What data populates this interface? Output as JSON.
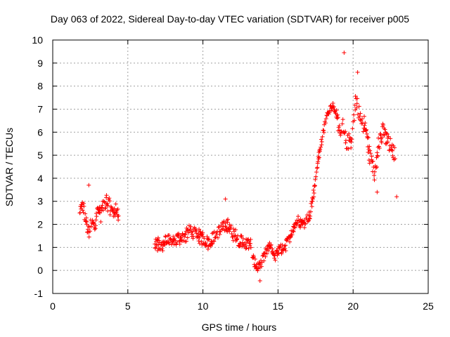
{
  "chart_data": {
    "type": "scatter",
    "title": "Day 063 of 2022, Sidereal Day-to-day VTEC variation (SDTVAR) for receiver p005",
    "xlabel": "GPS time / hours",
    "ylabel": "SDTVAR / TECUs",
    "xlim": [
      0,
      25
    ],
    "ylim": [
      -1,
      10
    ],
    "xticks": [
      "0",
      "5",
      "10",
      "15",
      "20",
      "25"
    ],
    "yticks": [
      "-1",
      "0",
      "1",
      "2",
      "3",
      "4",
      "5",
      "6",
      "7",
      "8",
      "9",
      "10"
    ],
    "grid": true,
    "marker": "+",
    "color": "#ff0000",
    "series": [
      {
        "name": "SDTVAR",
        "segments": [
          {
            "x": [
              1.8,
              2.0,
              2.2,
              2.4,
              2.6,
              2.8,
              3.0,
              3.2,
              3.4,
              3.6,
              3.8,
              4.0,
              4.2,
              4.4
            ],
            "y": [
              2.4,
              2.8,
              2.2,
              1.5,
              2.3,
              2.0,
              2.6,
              2.4,
              2.9,
              3.0,
              2.8,
              2.5,
              2.6,
              2.2
            ],
            "spread": 0.6
          },
          {
            "x": [
              6.8,
              7.2,
              7.6,
              8.0,
              8.4,
              8.8,
              9.2,
              9.6,
              10.0,
              10.4,
              10.8,
              11.2,
              11.6,
              12.0,
              12.4,
              12.8,
              13.2
            ],
            "y": [
              1.2,
              1.0,
              1.3,
              1.2,
              1.4,
              1.5,
              1.8,
              1.5,
              1.4,
              1.2,
              1.5,
              1.8,
              2.0,
              1.6,
              1.3,
              1.2,
              1.1
            ],
            "spread": 0.5
          },
          {
            "x": [
              13.3,
              13.6,
              13.9,
              14.2,
              14.5,
              14.8,
              15.1,
              15.4,
              15.7,
              16.0,
              16.3,
              16.6,
              16.9,
              17.2
            ],
            "y": [
              0.5,
              0.1,
              0.3,
              0.8,
              1.0,
              0.6,
              0.9,
              1.0,
              1.3,
              1.8,
              2.2,
              2.0,
              2.2,
              2.6
            ],
            "spread": 0.4
          },
          {
            "x": [
              17.2,
              17.4,
              17.6,
              17.8,
              18.0,
              18.2,
              18.4,
              18.6,
              18.8,
              19.0
            ],
            "y": [
              2.8,
              3.5,
              4.5,
              5.3,
              6.0,
              6.6,
              7.0,
              7.2,
              7.0,
              6.5
            ],
            "spread": 0.3
          },
          {
            "x": [
              19.0,
              19.3,
              19.6,
              19.9,
              20.2,
              20.5,
              20.8,
              21.1,
              21.4,
              21.7,
              22.0,
              22.4,
              22.8
            ],
            "y": [
              6.0,
              6.3,
              5.5,
              5.8,
              7.5,
              6.5,
              6.2,
              5.0,
              4.3,
              5.5,
              6.0,
              5.5,
              5.0
            ],
            "spread": 0.7
          }
        ],
        "outliers": [
          [
            19.4,
            9.45
          ],
          [
            21.6,
            3.4
          ],
          [
            22.9,
            3.2
          ],
          [
            13.8,
            -0.45
          ],
          [
            11.5,
            3.1
          ],
          [
            2.4,
            3.7
          ],
          [
            20.3,
            8.6
          ]
        ]
      }
    ]
  }
}
